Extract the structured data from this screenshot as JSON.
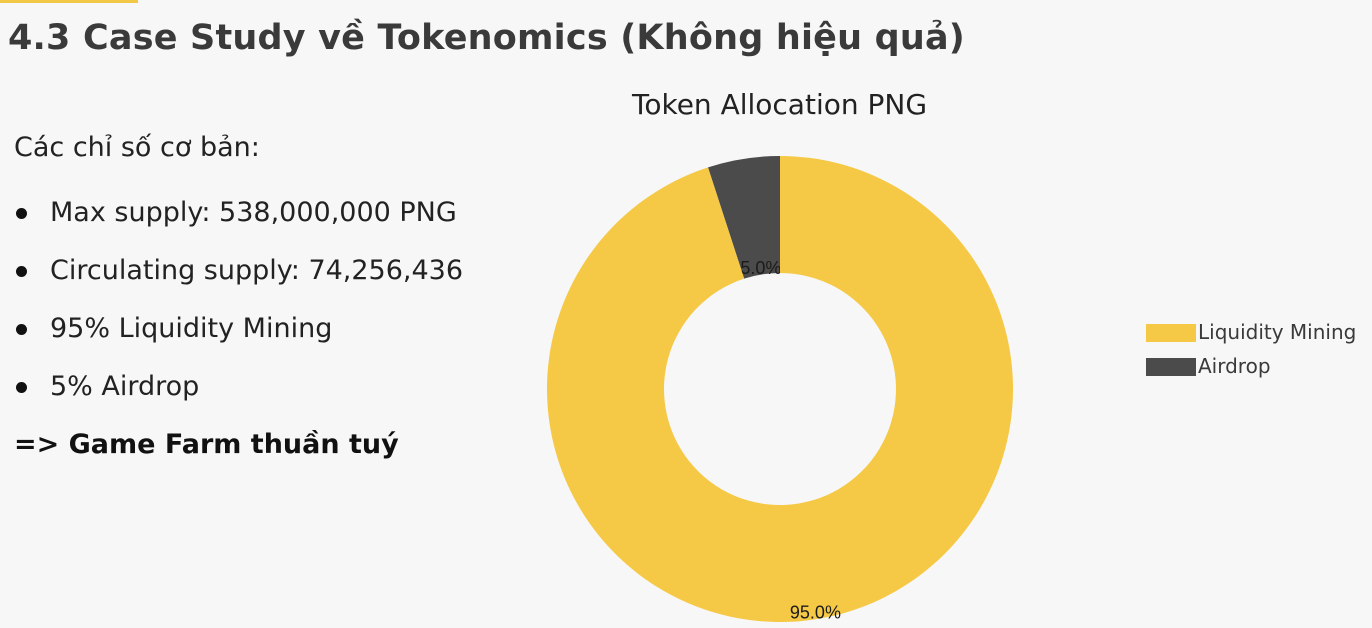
{
  "header": {
    "title": "4.3 Case Study về Tokenomics (Không hiệu quả)",
    "accent_color": "#f2c846"
  },
  "content": {
    "section_label": "Các chỉ số cơ bản:",
    "bullets": [
      "Max supply: 538,000,000 PNG",
      "Circulating supply: 74,256,436",
      "95% Liquidity Mining",
      "5% Airdrop"
    ],
    "conclusion": "=> Game Farm thuần tuý"
  },
  "chart_data": {
    "type": "pie",
    "title": "Token Allocation PNG",
    "categories": [
      "Liquidity Mining",
      "Airdrop"
    ],
    "values": [
      95.0,
      5.0
    ],
    "data_labels": [
      "95.0%",
      "5.0%"
    ],
    "colors": [
      "#f5c945",
      "#4b4b4b"
    ],
    "donut": true,
    "legend": "right"
  }
}
